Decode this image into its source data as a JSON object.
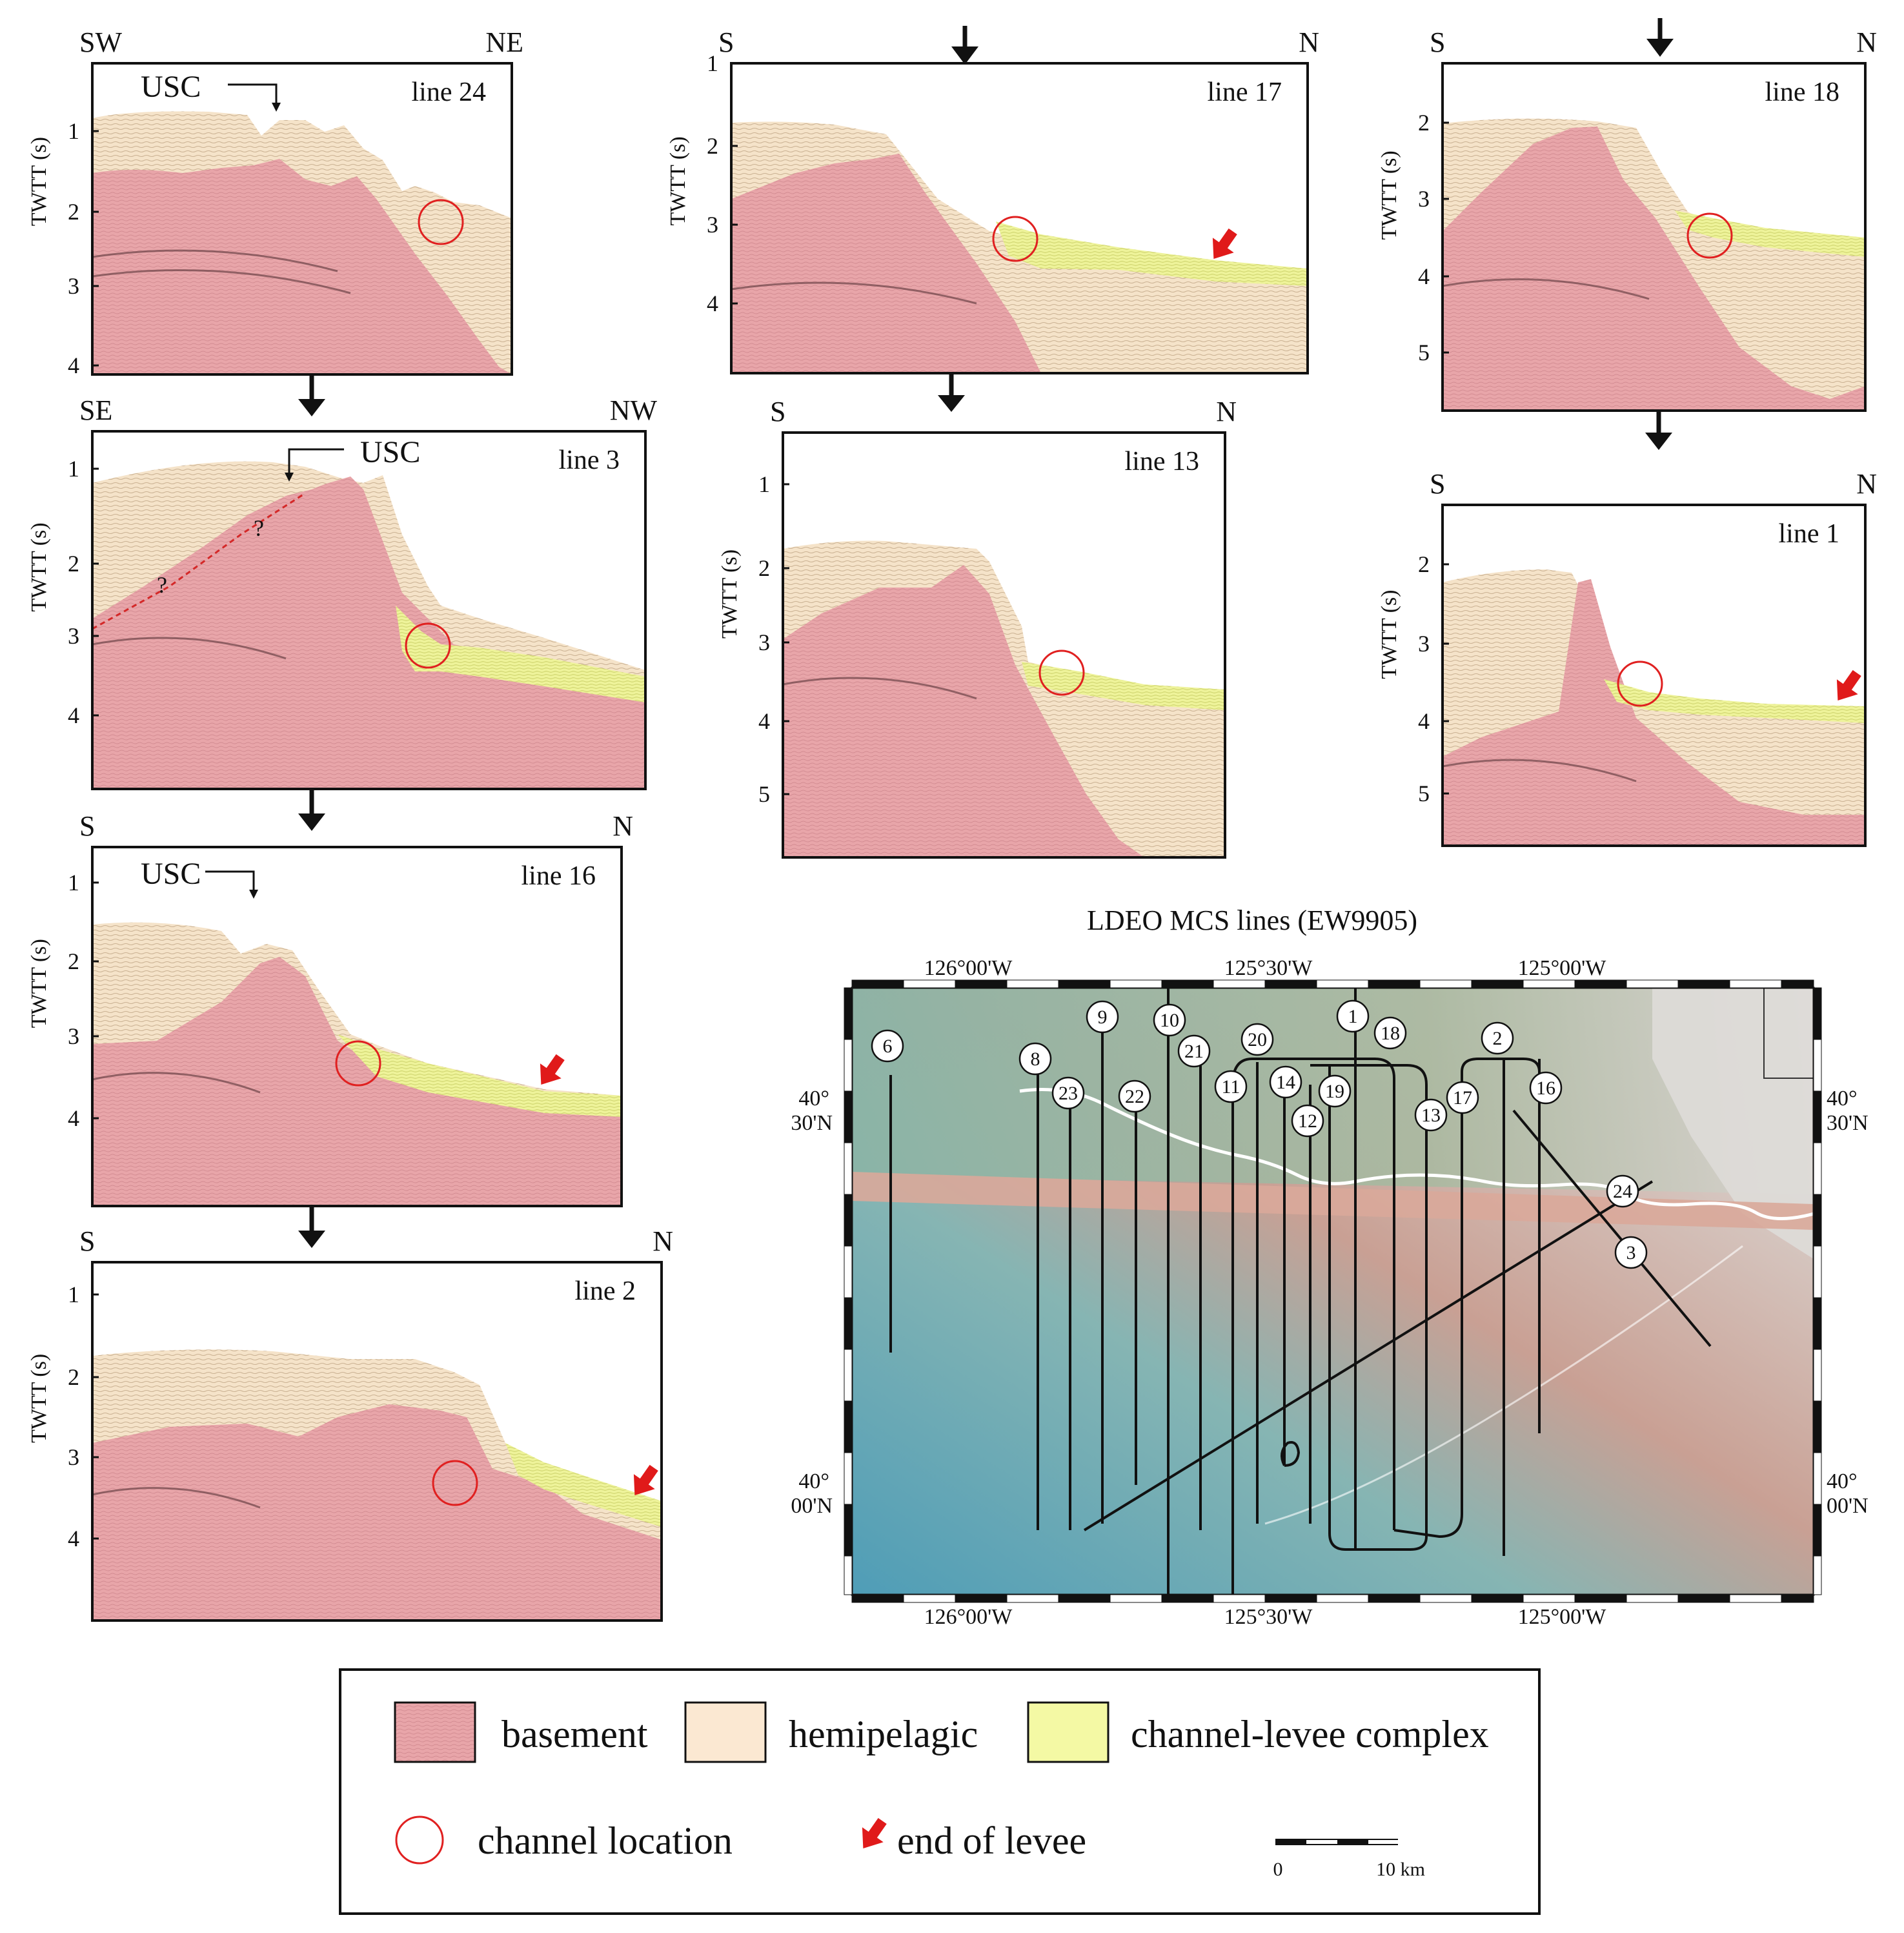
{
  "colors": {
    "basement": "#e8a5a9",
    "basement_dark": "#c47c82",
    "hemipelagic": "#f7e6cf",
    "hemipelagic_dark": "#c9b195",
    "levee": "#eef39a",
    "levee_dark": "#c8d05a",
    "circle": "#e02020",
    "arrow": "#e01a1a",
    "dashed": "#d42828",
    "map_west": "#5da5b9",
    "map_mid": "#c99a8e",
    "map_east": "#d2cdc9",
    "track": "#111111",
    "channel_line": "#ffffff"
  },
  "axis_label": "TWTT (s)",
  "panels": [
    {
      "id": "line24",
      "title": "line 24",
      "dir_left": "SW",
      "dir_right": "NE",
      "ticks": [
        "1",
        "2",
        "3",
        "4"
      ],
      "usc": "USC"
    },
    {
      "id": "line3",
      "title": "line 3",
      "dir_left": "SE",
      "dir_right": "NW",
      "ticks": [
        "1",
        "2",
        "3",
        "4"
      ],
      "usc": "USC",
      "question_marks": [
        "?",
        "?"
      ]
    },
    {
      "id": "line16",
      "title": "line 16",
      "dir_left": "S",
      "dir_right": "N",
      "ticks": [
        "1",
        "2",
        "3",
        "4"
      ],
      "usc": "USC"
    },
    {
      "id": "line2",
      "title": "line 2",
      "dir_left": "S",
      "dir_right": "N",
      "ticks": [
        "1",
        "2",
        "3",
        "4"
      ]
    },
    {
      "id": "line17",
      "title": "line 17",
      "dir_left": "S",
      "dir_right": "N",
      "ticks": [
        "1",
        "2",
        "3",
        "4"
      ]
    },
    {
      "id": "line13",
      "title": "line 13",
      "dir_left": "S",
      "dir_right": "N",
      "ticks": [
        "1",
        "2",
        "3",
        "4",
        "5"
      ]
    },
    {
      "id": "line18",
      "title": "line 18",
      "dir_left": "S",
      "dir_right": "N",
      "ticks": [
        "2",
        "3",
        "4",
        "5"
      ]
    },
    {
      "id": "line1",
      "title": "line 1",
      "dir_left": "S",
      "dir_right": "N",
      "ticks": [
        "2",
        "3",
        "4",
        "5"
      ]
    }
  ],
  "map": {
    "title": "LDEO MCS lines (EW9905)",
    "lon_labels": [
      "126°00'W",
      "125°30'W",
      "125°00'W"
    ],
    "lat_labels": [
      {
        "deg": "40°",
        "min": "30'N"
      },
      {
        "deg": "40°",
        "min": "00'N"
      }
    ],
    "line_numbers": [
      "6",
      "8",
      "9",
      "10",
      "21",
      "20",
      "1",
      "18",
      "2",
      "23",
      "22",
      "11",
      "14",
      "19",
      "12",
      "13",
      "17",
      "16",
      "24",
      "3"
    ]
  },
  "legend": {
    "basement": "basement",
    "hemipelagic": "hemipelagic",
    "levee": "channel-levee complex",
    "channel": "channel location",
    "end": "end of levee",
    "scale_zero": "0",
    "scale_ten": "10 km"
  }
}
